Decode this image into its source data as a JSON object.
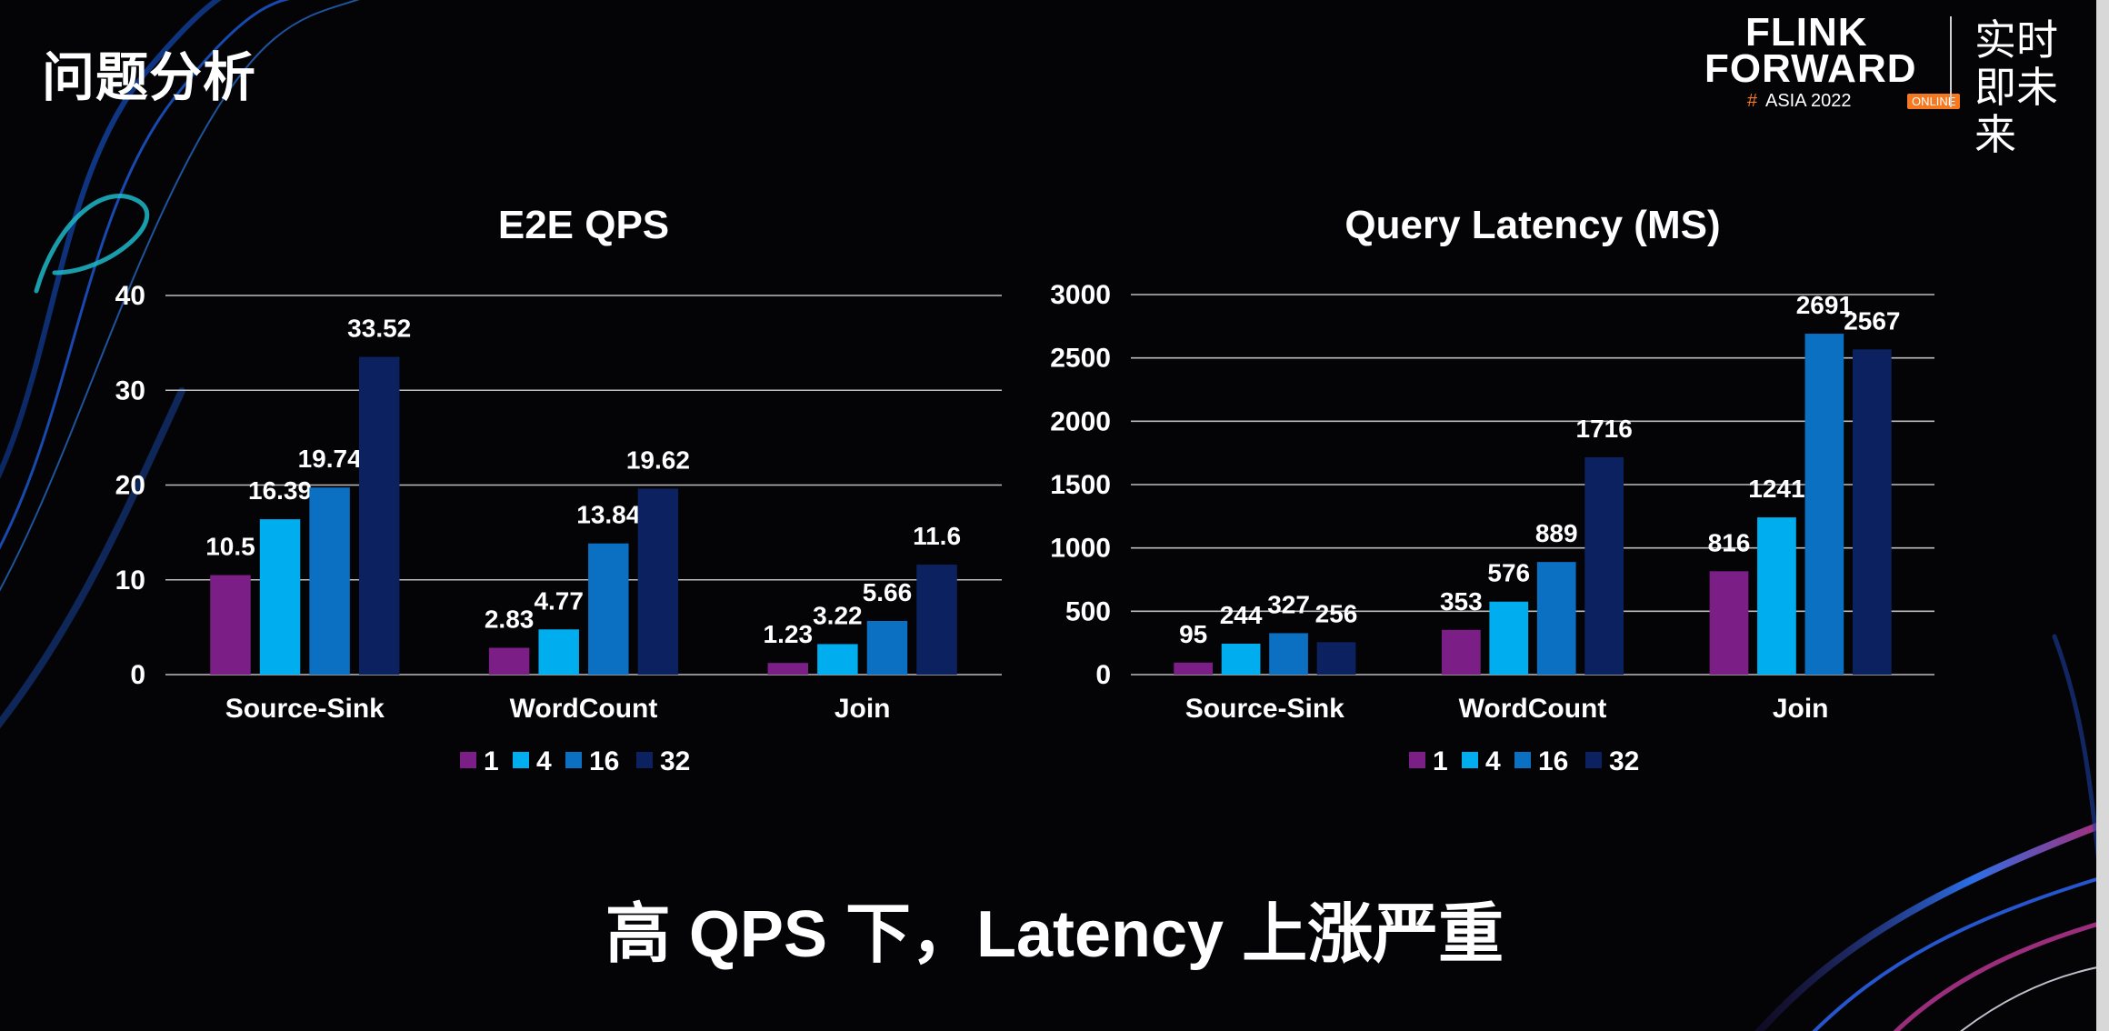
{
  "slide": {
    "title": "问题分析",
    "footer": "高 QPS 下，Latency 上涨严重"
  },
  "logo": {
    "line1": "FLINK",
    "line2": "FORWARD",
    "hash": "#",
    "edition": "ASIA 2022",
    "badge": "ONLINE",
    "slogan": "实时即未来"
  },
  "colors": {
    "background": "#040306",
    "series": [
      "#7b1f86",
      "#00aeef",
      "#0b6fc2",
      "#0c2260"
    ]
  },
  "chart_data": [
    {
      "type": "bar",
      "title": "E2E QPS",
      "categories": [
        "Source-Sink",
        "WordCount",
        "Join"
      ],
      "series": [
        {
          "name": "1",
          "values": [
            10.5,
            2.83,
            1.23
          ]
        },
        {
          "name": "4",
          "values": [
            16.39,
            4.77,
            3.22
          ]
        },
        {
          "name": "16",
          "values": [
            19.74,
            13.84,
            5.66
          ]
        },
        {
          "name": "32",
          "values": [
            33.52,
            19.62,
            11.6
          ]
        }
      ],
      "data_labels": [
        [
          "10.5",
          "2.83",
          "1.23"
        ],
        [
          "16.39",
          "4.77",
          "3.22"
        ],
        [
          "19.74",
          "13.84",
          "5.66"
        ],
        [
          "33.52",
          "19.62",
          "11.6"
        ]
      ],
      "yticks": [
        0,
        10,
        20,
        30,
        40
      ],
      "ylim": [
        0,
        40
      ],
      "grid": true,
      "legend": "bottom-center"
    },
    {
      "type": "bar",
      "title": "Query Latency (MS)",
      "categories": [
        "Source-Sink",
        "WordCount",
        "Join"
      ],
      "series": [
        {
          "name": "1",
          "values": [
            95,
            353,
            816
          ]
        },
        {
          "name": "4",
          "values": [
            244,
            576,
            1241
          ]
        },
        {
          "name": "16",
          "values": [
            327,
            889,
            2691
          ]
        },
        {
          "name": "32",
          "values": [
            256,
            1716,
            2567
          ]
        }
      ],
      "data_labels": [
        [
          "95",
          "353",
          "816"
        ],
        [
          "244",
          "576",
          "1241"
        ],
        [
          "327",
          "889",
          "2691"
        ],
        [
          "256",
          "1716",
          "2567"
        ]
      ],
      "yticks": [
        0,
        500,
        1000,
        1500,
        2000,
        2500,
        3000
      ],
      "ylim": [
        0,
        3000
      ],
      "grid": true,
      "legend": "bottom-center"
    }
  ]
}
